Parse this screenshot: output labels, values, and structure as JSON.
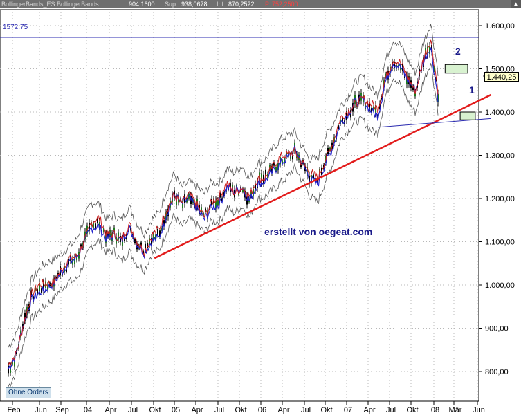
{
  "header": {
    "indicator_name": "BollingerBands_ES  BollingerBands",
    "value": "904,1600",
    "sup_label": "Sup:",
    "sup_value": "938,0678",
    "inf_label": "Inf:",
    "inf_value": "870,2522",
    "p_label": "P:",
    "p_value": "752,2500"
  },
  "reference_line_label": "1572.75",
  "current_price_label": "1.440,25",
  "watermark": "erstellt von oegeat.com",
  "orders_button": "Ohne Orders",
  "box_labels": [
    "2",
    "1"
  ],
  "colors": {
    "trendline": "#e21b1b",
    "support_line": "#2b2bb0",
    "reference_line": "#2b2bb0",
    "band": "#555555",
    "ma_blue": "#2222cc",
    "ma_red": "#cc2222",
    "box_fill": "#d8f2d0",
    "header_bg": "#6f6f6f"
  },
  "chart_data": {
    "type": "line",
    "title": "",
    "xlabel": "",
    "ylabel": "",
    "ylim": [
      750,
      1630
    ],
    "y_ticks": [
      800,
      900,
      1000,
      1100,
      1200,
      1300,
      1400,
      1500,
      1600
    ],
    "y_tick_labels": [
      "800,00",
      "900,00",
      "1.000,00",
      "1.100,00",
      "1.200,00",
      "1.300,00",
      "1.400,00",
      "1.500,00",
      "1.600,00"
    ],
    "x_tick_labels": [
      "Feb",
      "Jun",
      "Sep",
      "04",
      "Apr",
      "Jul",
      "Okt",
      "05",
      "Apr",
      "Jul",
      "Okt",
      "06",
      "Apr",
      "Jul",
      "Okt",
      "07",
      "Apr",
      "Jul",
      "Okt",
      "08",
      "Mär",
      "Jun"
    ],
    "price_series": {
      "name": "",
      "x": [
        "2003-02",
        "2003-03",
        "2003-04",
        "2003-05",
        "2003-06",
        "2003-07",
        "2003-08",
        "2003-09",
        "2003-10",
        "2003-11",
        "2003-12",
        "2004-01",
        "2004-02",
        "2004-03",
        "2004-04",
        "2004-05",
        "2004-06",
        "2004-07",
        "2004-08",
        "2004-09",
        "2004-10",
        "2004-11",
        "2004-12",
        "2005-01",
        "2005-02",
        "2005-03",
        "2005-04",
        "2005-05",
        "2005-06",
        "2005-07",
        "2005-08",
        "2005-09",
        "2005-10",
        "2005-11",
        "2005-12",
        "2006-01",
        "2006-02",
        "2006-03",
        "2006-04",
        "2006-05",
        "2006-06",
        "2006-07",
        "2006-08",
        "2006-09",
        "2006-10",
        "2006-11",
        "2006-12",
        "2007-01",
        "2007-02",
        "2007-03",
        "2007-04",
        "2007-05",
        "2007-06",
        "2007-07",
        "2007-08",
        "2007-09",
        "2007-10",
        "2007-11"
      ],
      "close": [
        805,
        835,
        910,
        970,
        990,
        1000,
        1010,
        1030,
        1050,
        1060,
        1100,
        1140,
        1145,
        1115,
        1120,
        1100,
        1130,
        1100,
        1080,
        1110,
        1120,
        1170,
        1210,
        1185,
        1200,
        1180,
        1160,
        1190,
        1195,
        1230,
        1215,
        1225,
        1195,
        1240,
        1250,
        1270,
        1285,
        1295,
        1310,
        1280,
        1250,
        1240,
        1290,
        1325,
        1375,
        1395,
        1420,
        1430,
        1410,
        1400,
        1480,
        1520,
        1505,
        1470,
        1450,
        1520,
        1560,
        1440
      ]
    },
    "trendline": {
      "name": "",
      "points": [
        [
          "2004-08",
          1062
        ],
        [
          "2008-06",
          1440
        ]
      ]
    },
    "support_line": {
      "name": "",
      "points": [
        [
          "2007-03",
          1365
        ],
        [
          "2008-06",
          1385
        ]
      ]
    },
    "reference_line": {
      "name": "",
      "value": 1572.75
    },
    "target_boxes": [
      {
        "label": "2",
        "y_range": [
          1490,
          1510
        ],
        "x_range": [
          "2007-11",
          "2008-02"
        ]
      },
      {
        "label": "1",
        "y_range": [
          1382,
          1400
        ],
        "x_range": [
          "2008-01",
          "2008-03"
        ]
      }
    ],
    "grid": true,
    "legend": "none"
  }
}
